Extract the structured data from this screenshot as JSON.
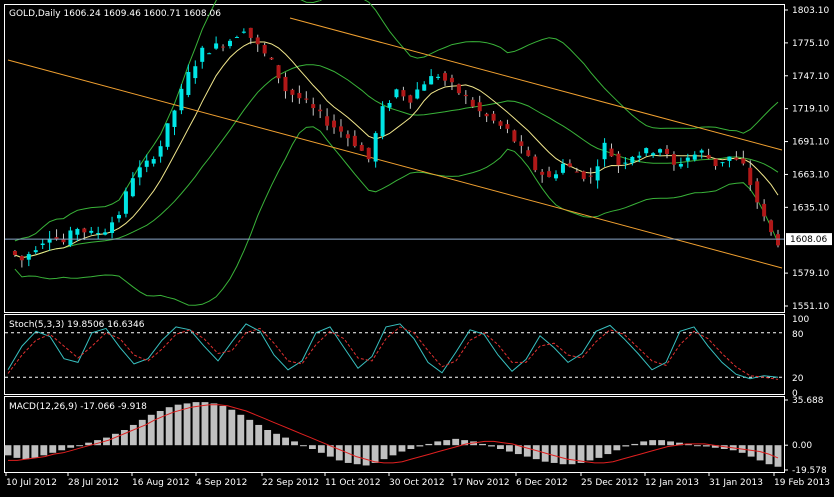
{
  "colors": {
    "background": "#000000",
    "border": "#ffffff",
    "bull_candle": "#00e5e5",
    "bear_candle": "#b01818",
    "bollinger": "#39b339",
    "ma": "#f0e68c",
    "channel": "#f0a030",
    "bid_line": "#8aa6c8",
    "stoch_main": "#38c0c0",
    "stoch_signal": "#e03030",
    "macd_hist": "#c0c0c0",
    "macd_signal": "#e02020"
  },
  "price_panel": {
    "title": "GOLD,Daily  1606.24 1609.46 1600.71 1608.06",
    "y_ticks": [
      "1803.10",
      "1775.10",
      "1747.10",
      "1719.10",
      "1691.10",
      "1663.10",
      "1635.10",
      "1608.06",
      "1579.10",
      "1551.10"
    ],
    "current_price": "1608.06"
  },
  "stoch_panel": {
    "title": "Stoch(5,3,3) 19.8506 16.6346",
    "levels": [
      "100",
      "80",
      "20",
      "0"
    ]
  },
  "macd_panel": {
    "title": "MACD(12,26,9) -17.066 -9.918",
    "y_ticks": [
      "35.688",
      "0.00",
      "-19.578"
    ]
  },
  "x_axis": {
    "labels": [
      "10 Jul 2012",
      "28 Jul 2012",
      "16 Aug 2012",
      "4 Sep 2012",
      "22 Sep 2012",
      "11 Oct 2012",
      "30 Oct 2012",
      "17 Nov 2012",
      "6 Dec 2012",
      "25 Dec 2012",
      "12 Jan 2013",
      "31 Jan 2013",
      "19 Feb 2013"
    ]
  },
  "chart_data": {
    "type": "candlestick",
    "symbol": "GOLD",
    "timeframe": "Daily",
    "last_bar": {
      "open": 1606.24,
      "high": 1609.46,
      "low": 1600.71,
      "close": 1608.06
    },
    "close_path": [
      [
        0,
        1598
      ],
      [
        6,
        1590
      ],
      [
        12,
        1602
      ],
      [
        18,
        1612
      ],
      [
        24,
        1605
      ],
      [
        30,
        1618
      ],
      [
        36,
        1612
      ],
      [
        42,
        1616
      ],
      [
        48,
        1630
      ],
      [
        54,
        1662
      ],
      [
        60,
        1672
      ],
      [
        66,
        1688
      ],
      [
        72,
        1718
      ],
      [
        78,
        1748
      ],
      [
        84,
        1768
      ],
      [
        90,
        1772
      ],
      [
        96,
        1778
      ],
      [
        102,
        1788
      ],
      [
        108,
        1772
      ],
      [
        114,
        1758
      ],
      [
        120,
        1735
      ],
      [
        126,
        1728
      ],
      [
        132,
        1718
      ],
      [
        138,
        1708
      ],
      [
        144,
        1700
      ],
      [
        150,
        1690
      ],
      [
        156,
        1676
      ],
      [
        162,
        1718
      ],
      [
        168,
        1735
      ],
      [
        174,
        1728
      ],
      [
        180,
        1742
      ],
      [
        186,
        1748
      ],
      [
        192,
        1738
      ],
      [
        198,
        1728
      ],
      [
        204,
        1716
      ],
      [
        210,
        1708
      ],
      [
        216,
        1700
      ],
      [
        222,
        1684
      ],
      [
        228,
        1668
      ],
      [
        234,
        1660
      ],
      [
        240,
        1672
      ],
      [
        246,
        1665
      ],
      [
        252,
        1660
      ],
      [
        258,
        1688
      ],
      [
        264,
        1672
      ],
      [
        270,
        1680
      ],
      [
        276,
        1682
      ],
      [
        282,
        1686
      ],
      [
        288,
        1670
      ],
      [
        294,
        1678
      ],
      [
        300,
        1682
      ],
      [
        306,
        1672
      ],
      [
        312,
        1678
      ],
      [
        318,
        1670
      ],
      [
        324,
        1640
      ],
      [
        328,
        1620
      ],
      [
        332,
        1606
      ]
    ],
    "stoch_main": [
      30,
      62,
      82,
      75,
      45,
      40,
      80,
      86,
      60,
      38,
      45,
      70,
      88,
      84,
      62,
      42,
      68,
      92,
      82,
      50,
      30,
      42,
      80,
      88,
      60,
      32,
      48,
      88,
      92,
      72,
      40,
      26,
      54,
      84,
      78,
      50,
      28,
      44,
      76,
      60,
      40,
      52,
      82,
      90,
      72,
      52,
      30,
      40,
      82,
      88,
      62,
      40,
      24,
      18,
      22,
      20
    ],
    "stoch_signal": [
      25,
      50,
      70,
      78,
      62,
      46,
      62,
      80,
      72,
      50,
      42,
      58,
      78,
      84,
      72,
      52,
      56,
      80,
      86,
      66,
      42,
      38,
      64,
      82,
      72,
      46,
      42,
      72,
      88,
      80,
      56,
      34,
      42,
      70,
      80,
      64,
      40,
      40,
      62,
      66,
      50,
      46,
      68,
      84,
      78,
      60,
      42,
      36,
      64,
      82,
      72,
      52,
      34,
      22,
      20,
      17
    ],
    "macd_hist": [
      -8,
      -10,
      -11,
      -10,
      -8,
      -6,
      -4,
      -2,
      0,
      2,
      4,
      6,
      9,
      12,
      16,
      20,
      24,
      27,
      30,
      32,
      33,
      34,
      34,
      33,
      31,
      28,
      24,
      20,
      16,
      12,
      9,
      6,
      3,
      0,
      -3,
      -6,
      -9,
      -12,
      -14,
      -15,
      -16,
      -14,
      -11,
      -8,
      -5,
      -3,
      -1,
      1,
      3,
      4,
      5,
      4,
      3,
      1,
      -1,
      -3,
      -5,
      -7,
      -9,
      -11,
      -13,
      -14,
      -15,
      -15,
      -14,
      -12,
      -10,
      -7,
      -4,
      -1,
      1,
      3,
      4,
      4,
      3,
      2,
      1,
      0,
      -1,
      -2,
      -3,
      -4,
      -6,
      -9,
      -12,
      -15,
      -17
    ],
    "macd_signal": [
      -12,
      -12,
      -11,
      -10,
      -9,
      -7,
      -6,
      -4,
      -2,
      0,
      2,
      4,
      7,
      10,
      13,
      16,
      20,
      23,
      26,
      28,
      30,
      31,
      32,
      32,
      31,
      29,
      27,
      24,
      21,
      18,
      15,
      12,
      9,
      6,
      3,
      0,
      -3,
      -6,
      -9,
      -11,
      -13,
      -14,
      -14,
      -13,
      -11,
      -9,
      -7,
      -5,
      -3,
      -1,
      1,
      2,
      3,
      3,
      2,
      1,
      -1,
      -3,
      -5,
      -7,
      -9,
      -11,
      -12,
      -13,
      -14,
      -14,
      -13,
      -11,
      -9,
      -7,
      -5,
      -3,
      -1,
      0,
      1,
      1,
      1,
      0,
      -1,
      -2,
      -3,
      -4,
      -5,
      -7,
      -10
    ]
  }
}
